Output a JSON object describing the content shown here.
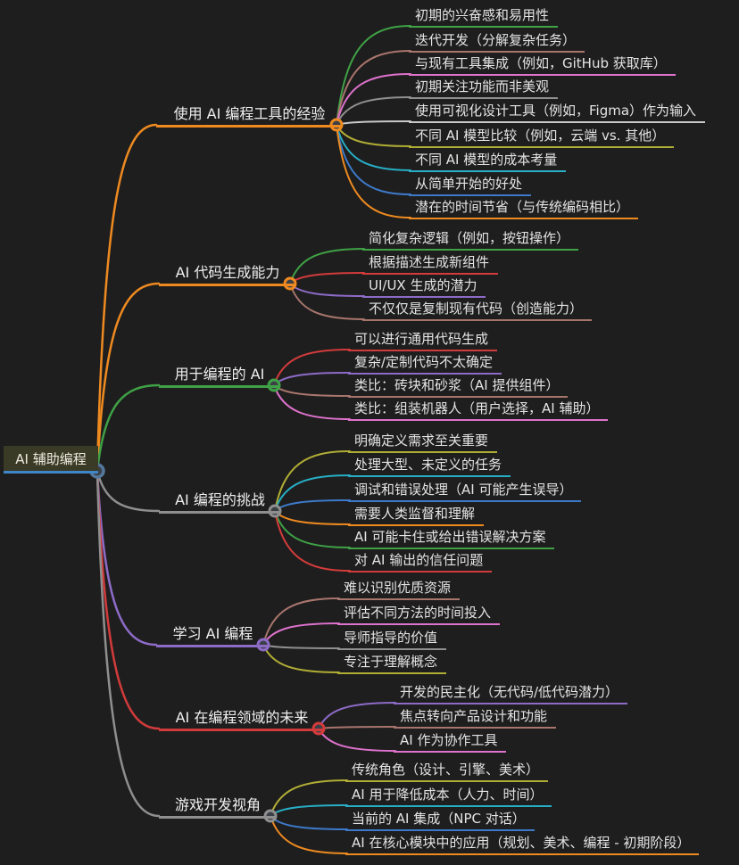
{
  "root": {
    "label": "AI 辅助编程"
  },
  "branches": [
    {
      "label": "使用 AI 编程工具的经验",
      "color": "orange",
      "children": [
        {
          "label": "初期的兴奋感和易用性",
          "color": "green"
        },
        {
          "label": "迭代开发（分解复杂任务）",
          "color": "rosy"
        },
        {
          "label": "与现有工具集成（例如，GitHub 获取库）",
          "color": "pink"
        },
        {
          "label": "初期关注功能而非美观",
          "color": "gray"
        },
        {
          "label": "使用可视化设计工具（例如，Figma）作为输入",
          "color": "lightgray"
        },
        {
          "label": "不同 AI 模型比较（例如，云端 vs. 其他）",
          "color": "olive"
        },
        {
          "label": "不同 AI 模型的成本考量",
          "color": "cyan"
        },
        {
          "label": "从简单开始的好处",
          "color": "blue"
        },
        {
          "label": "潜在的时间节省（与传统编码相比）",
          "color": "orange"
        }
      ]
    },
    {
      "label": "AI 代码生成能力",
      "color": "orange",
      "children": [
        {
          "label": "简化复杂逻辑（例如，按钮操作）",
          "color": "green"
        },
        {
          "label": "根据描述生成新组件",
          "color": "red"
        },
        {
          "label": "UI/UX 生成的潜力",
          "color": "purple"
        },
        {
          "label": "不仅仅是复制现有代码（创造能力）",
          "color": "rosy"
        }
      ]
    },
    {
      "label": "用于编程的 AI",
      "color": "green",
      "children": [
        {
          "label": "可以进行通用代码生成",
          "color": "red"
        },
        {
          "label": "复杂/定制代码不太确定",
          "color": "purple"
        },
        {
          "label": "类比：砖块和砂浆（AI 提供组件）",
          "color": "rosy"
        },
        {
          "label": "类比：组装机器人（用户选择，AI 辅助）",
          "color": "pink"
        }
      ]
    },
    {
      "label": "AI 编程的挑战",
      "color": "gray",
      "children": [
        {
          "label": "明确定义需求至关重要",
          "color": "olive"
        },
        {
          "label": "处理大型、未定义的任务",
          "color": "cyan"
        },
        {
          "label": "调试和错误处理（AI 可能产生误导）",
          "color": "blue"
        },
        {
          "label": "需要人类监督和理解",
          "color": "orange"
        },
        {
          "label": "AI 可能卡住或给出错误解决方案",
          "color": "green"
        },
        {
          "label": "对 AI 输出的信任问题",
          "color": "red"
        }
      ]
    },
    {
      "label": "学习 AI 编程",
      "color": "purple",
      "children": [
        {
          "label": "难以识别优质资源",
          "color": "rosy"
        },
        {
          "label": "评估不同方法的时间投入",
          "color": "pink"
        },
        {
          "label": "导师指导的价值",
          "color": "gray"
        },
        {
          "label": "专注于理解概念",
          "color": "olive"
        }
      ]
    },
    {
      "label": "AI 在编程领域的未来",
      "color": "red",
      "children": [
        {
          "label": "开发的民主化（无代码/低代码潜力）",
          "color": "purple"
        },
        {
          "label": "焦点转向产品设计和功能",
          "color": "rosy"
        },
        {
          "label": "AI 作为协作工具",
          "color": "pink"
        }
      ]
    },
    {
      "label": "游戏开发视角",
      "color": "gray",
      "children": [
        {
          "label": "传统角色（设计、引擎、美术）",
          "color": "olive"
        },
        {
          "label": "AI 用于降低成本（人力、时间）",
          "color": "cyan"
        },
        {
          "label": "当前的 AI 集成（NPC 对话）",
          "color": "blue"
        },
        {
          "label": "AI 在核心模块中的应用（规划、美术、编程 - 初期阶段）",
          "color": "orange"
        }
      ]
    }
  ],
  "palette": {
    "green": "#3fa246",
    "rosy": "#a8756d",
    "pink": "#de72cc",
    "gray": "#8f8f8f",
    "lightgray": "#c9c9c9",
    "olive": "#b0ad35",
    "cyan": "#27aec5",
    "blue": "#3d79c9",
    "orange": "#ee8a20",
    "red": "#d23b3b",
    "purple": "#8d6bc7",
    "root_underline": "#3f86c8",
    "root_ring": "#54779d",
    "node_fill": "#3b4046",
    "background": "#1e1e1e",
    "text": "#e4e4e4",
    "root_bg": "#3a3b26"
  }
}
